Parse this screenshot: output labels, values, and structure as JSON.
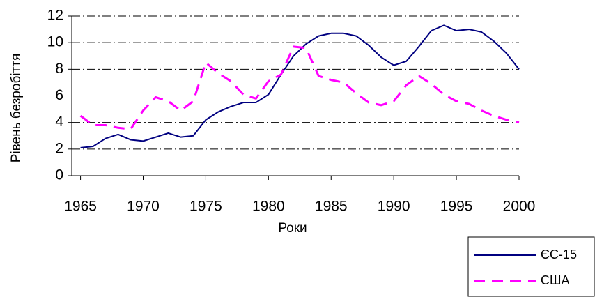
{
  "chart_data": {
    "type": "line",
    "y_label": "Рівень безробіття",
    "x_label": "Роки",
    "x": [
      1965,
      1966,
      1967,
      1968,
      1969,
      1970,
      1971,
      1972,
      1973,
      1974,
      1975,
      1976,
      1977,
      1978,
      1979,
      1980,
      1981,
      1982,
      1983,
      1984,
      1985,
      1986,
      1987,
      1988,
      1989,
      1990,
      1991,
      1992,
      1993,
      1994,
      1995,
      1996,
      1997,
      1998,
      1999,
      2000
    ],
    "series": [
      {
        "name": "ЄС-15",
        "color": "#000080",
        "dash": "solid",
        "values": [
          2.1,
          2.2,
          2.8,
          3.1,
          2.7,
          2.6,
          2.9,
          3.2,
          2.9,
          3.0,
          4.2,
          4.8,
          5.2,
          5.5,
          5.5,
          6.1,
          7.6,
          9.0,
          9.9,
          10.5,
          10.7,
          10.7,
          10.5,
          9.8,
          8.9,
          8.3,
          8.6,
          9.7,
          10.9,
          11.3,
          10.9,
          11.0,
          10.8,
          10.1,
          9.2,
          8.0
        ]
      },
      {
        "name": "США",
        "color": "#ff00ff",
        "dash": "dashed",
        "values": [
          4.5,
          3.8,
          3.8,
          3.6,
          3.5,
          4.9,
          5.9,
          5.6,
          4.9,
          5.6,
          8.5,
          7.7,
          7.1,
          6.1,
          5.8,
          7.1,
          7.6,
          9.7,
          9.6,
          7.5,
          7.2,
          7.0,
          6.2,
          5.5,
          5.3,
          5.6,
          6.8,
          7.5,
          6.9,
          6.1,
          5.6,
          5.4,
          4.9,
          4.5,
          4.2,
          4.0
        ]
      }
    ],
    "xlim": [
      1964.3,
      2000
    ],
    "xticks": [
      1965,
      1970,
      1975,
      1980,
      1985,
      1990,
      1995,
      2000
    ],
    "ylim": [
      0,
      12
    ],
    "yticks": [
      0,
      2,
      4,
      6,
      8,
      10,
      12
    ],
    "grid": true
  }
}
